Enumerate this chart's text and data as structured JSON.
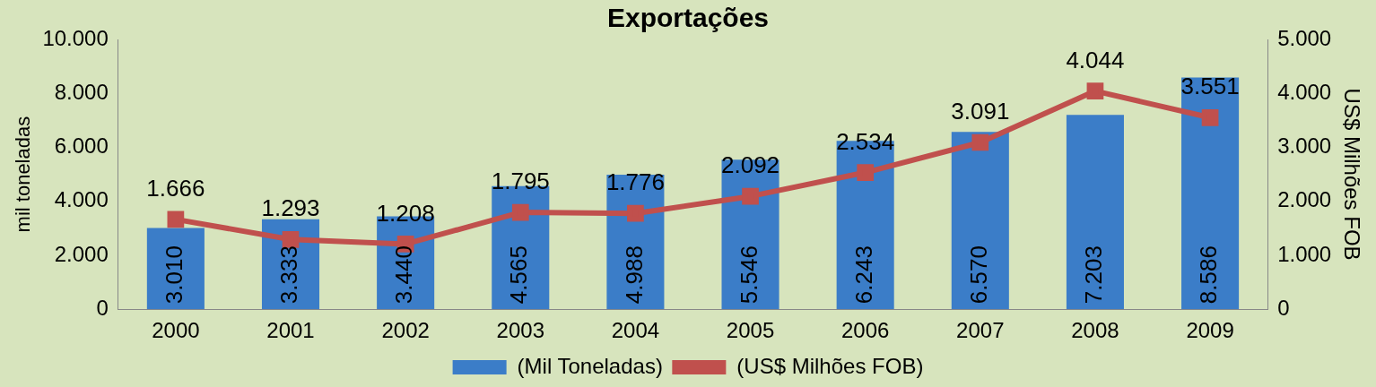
{
  "chart_data": {
    "type": "bar",
    "title": "Exportações",
    "ylabel": "mil toneladas",
    "y2label": "US$ Milhões FOB",
    "categories": [
      "2000",
      "2001",
      "2002",
      "2003",
      "2004",
      "2005",
      "2006",
      "2007",
      "2008",
      "2009"
    ],
    "series": [
      {
        "name": "(Mil Toneladas)",
        "color": "#3b7dc8",
        "values": [
          3010,
          3333,
          3440,
          4565,
          4988,
          5546,
          6243,
          6570,
          7203,
          8586
        ],
        "value_labels": [
          "3.010",
          "3.333",
          "3.440",
          "4.565",
          "4.988",
          "5.546",
          "6.243",
          "6.570",
          "7.203",
          "8.586"
        ]
      },
      {
        "name": "(US$ Milhões FOB)",
        "type": "line",
        "axis": "y2",
        "color": "#c0504d",
        "marker": "square",
        "values": [
          1666,
          1293,
          1208,
          1795,
          1776,
          2092,
          2534,
          3091,
          4044,
          3551
        ],
        "value_labels": [
          "1.666",
          "1.293",
          "1.208",
          "1.795",
          "1.776",
          "2.092",
          "2.534",
          "3.091",
          "4.044",
          "3.551"
        ]
      }
    ],
    "ylim": [
      0,
      10000
    ],
    "yticks": [
      0,
      {
        "value": 2000,
        "label": "2.000"
      },
      {
        "value": 4000,
        "label": "4.000"
      },
      {
        "value": 6000,
        "label": "6.000"
      },
      {
        "value": 8000,
        "label": "8.000"
      },
      {
        "value": 10000,
        "label": "10.000"
      }
    ],
    "y2lim": [
      0,
      5000
    ],
    "y2ticks": [
      0,
      {
        "value": 1000,
        "label": "1.000"
      },
      {
        "value": 2000,
        "label": "2.000"
      },
      {
        "value": 3000,
        "label": "3.000"
      },
      {
        "value": 4000,
        "label": "4.000"
      },
      {
        "value": 5000,
        "label": "5.000"
      }
    ],
    "grid": false,
    "legend": "bottom"
  }
}
